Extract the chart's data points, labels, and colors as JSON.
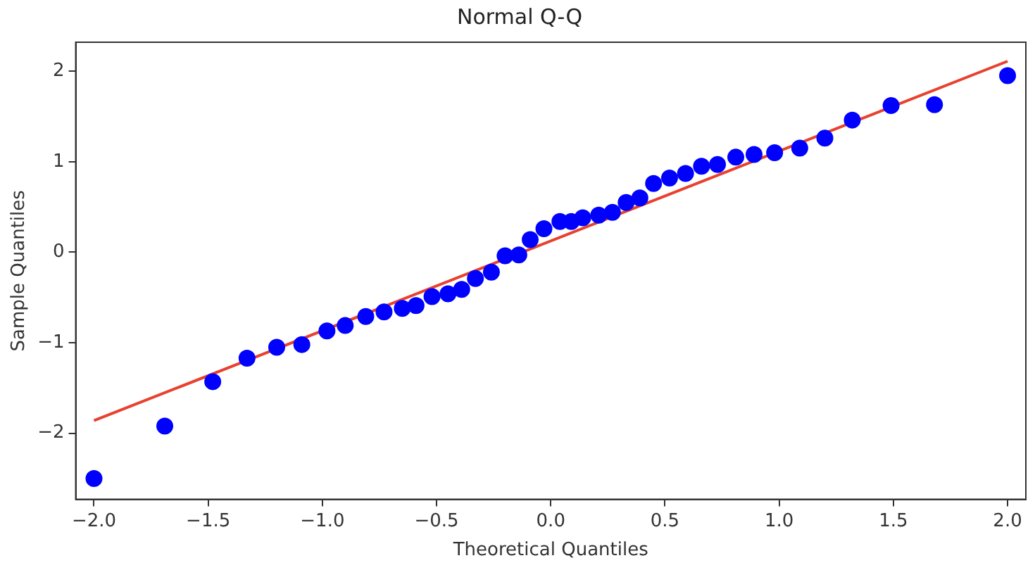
{
  "chart_data": {
    "type": "scatter",
    "title": "Normal Q-Q",
    "xlabel": "Theoretical Quantiles",
    "ylabel": "Sample Quantiles",
    "xlim": [
      -2.08,
      2.08
    ],
    "ylim": [
      -2.73,
      2.32
    ],
    "xticks": [
      {
        "value": -2,
        "label": "−2.0"
      },
      {
        "value": -1.5,
        "label": "−1.5"
      },
      {
        "value": -1,
        "label": "−1.0"
      },
      {
        "value": -0.5,
        "label": "−0.5"
      },
      {
        "value": 0,
        "label": "0.0"
      },
      {
        "value": 0.5,
        "label": "0.5"
      },
      {
        "value": 1,
        "label": "1.0"
      },
      {
        "value": 1.5,
        "label": "1.5"
      },
      {
        "value": 2,
        "label": "2.0"
      }
    ],
    "yticks": [
      {
        "value": -2,
        "label": "−2"
      },
      {
        "value": -1,
        "label": "−1"
      },
      0,
      1,
      2
    ],
    "grid": false,
    "legend": false,
    "marker": "circle",
    "series": [
      {
        "type": "scatter",
        "color": "#0000ff",
        "x": [
          -2.0,
          -1.69,
          -1.48,
          -1.33,
          -1.2,
          -1.09,
          -0.98,
          -0.9,
          -0.81,
          -0.73,
          -0.65,
          -0.59,
          -0.52,
          -0.45,
          -0.39,
          -0.33,
          -0.26,
          -0.2,
          -0.14,
          -0.09,
          -0.03,
          0.04,
          0.09,
          0.14,
          0.21,
          0.27,
          0.33,
          0.39,
          0.45,
          0.52,
          0.59,
          0.66,
          0.73,
          0.81,
          0.89,
          0.98,
          1.09,
          1.2,
          1.32,
          1.49,
          1.68,
          2.0
        ],
        "values": [
          -2.5,
          -1.92,
          -1.43,
          -1.17,
          -1.05,
          -1.02,
          -0.87,
          -0.81,
          -0.71,
          -0.66,
          -0.62,
          -0.59,
          -0.49,
          -0.46,
          -0.41,
          -0.29,
          -0.22,
          -0.04,
          -0.03,
          0.14,
          0.26,
          0.34,
          0.34,
          0.38,
          0.41,
          0.44,
          0.55,
          0.6,
          0.76,
          0.82,
          0.87,
          0.95,
          0.97,
          1.05,
          1.08,
          1.1,
          1.15,
          1.26,
          1.46,
          1.62,
          1.63,
          1.95
        ]
      },
      {
        "type": "line",
        "color": "#e8412f",
        "marker": "none",
        "x": [
          -2.0,
          2.0
        ],
        "values": [
          -1.86,
          2.11
        ]
      }
    ]
  }
}
